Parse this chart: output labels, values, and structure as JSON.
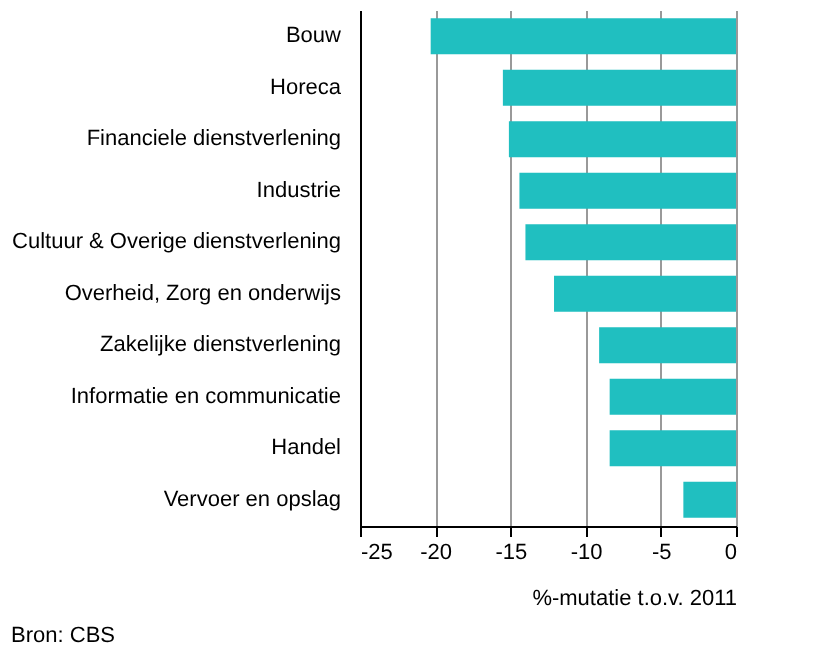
{
  "chart_data": {
    "type": "bar",
    "orientation": "horizontal",
    "categories": [
      "Bouw",
      "Horeca",
      "Financiele dienstverlening",
      "Industrie",
      "Cultuur & Overige dienstverlening",
      "Overheid, Zorg en onderwijs",
      "Zakelijke dienstverlening",
      "Informatie en communicatie",
      "Handel",
      "Vervoer en opslag"
    ],
    "values": [
      -20.3,
      -15.5,
      -15.1,
      -14.4,
      -14.0,
      -12.1,
      -9.1,
      -8.4,
      -8.4,
      -3.5
    ],
    "color": "#20bfc0",
    "xlim": [
      -25,
      0
    ],
    "xticks": [
      -25,
      -20,
      -15,
      -10,
      -5,
      0
    ],
    "xlabel": "%-mutatie t.o.v. 2011",
    "grid": "x",
    "annotations": [
      "Bron: CBS"
    ]
  }
}
